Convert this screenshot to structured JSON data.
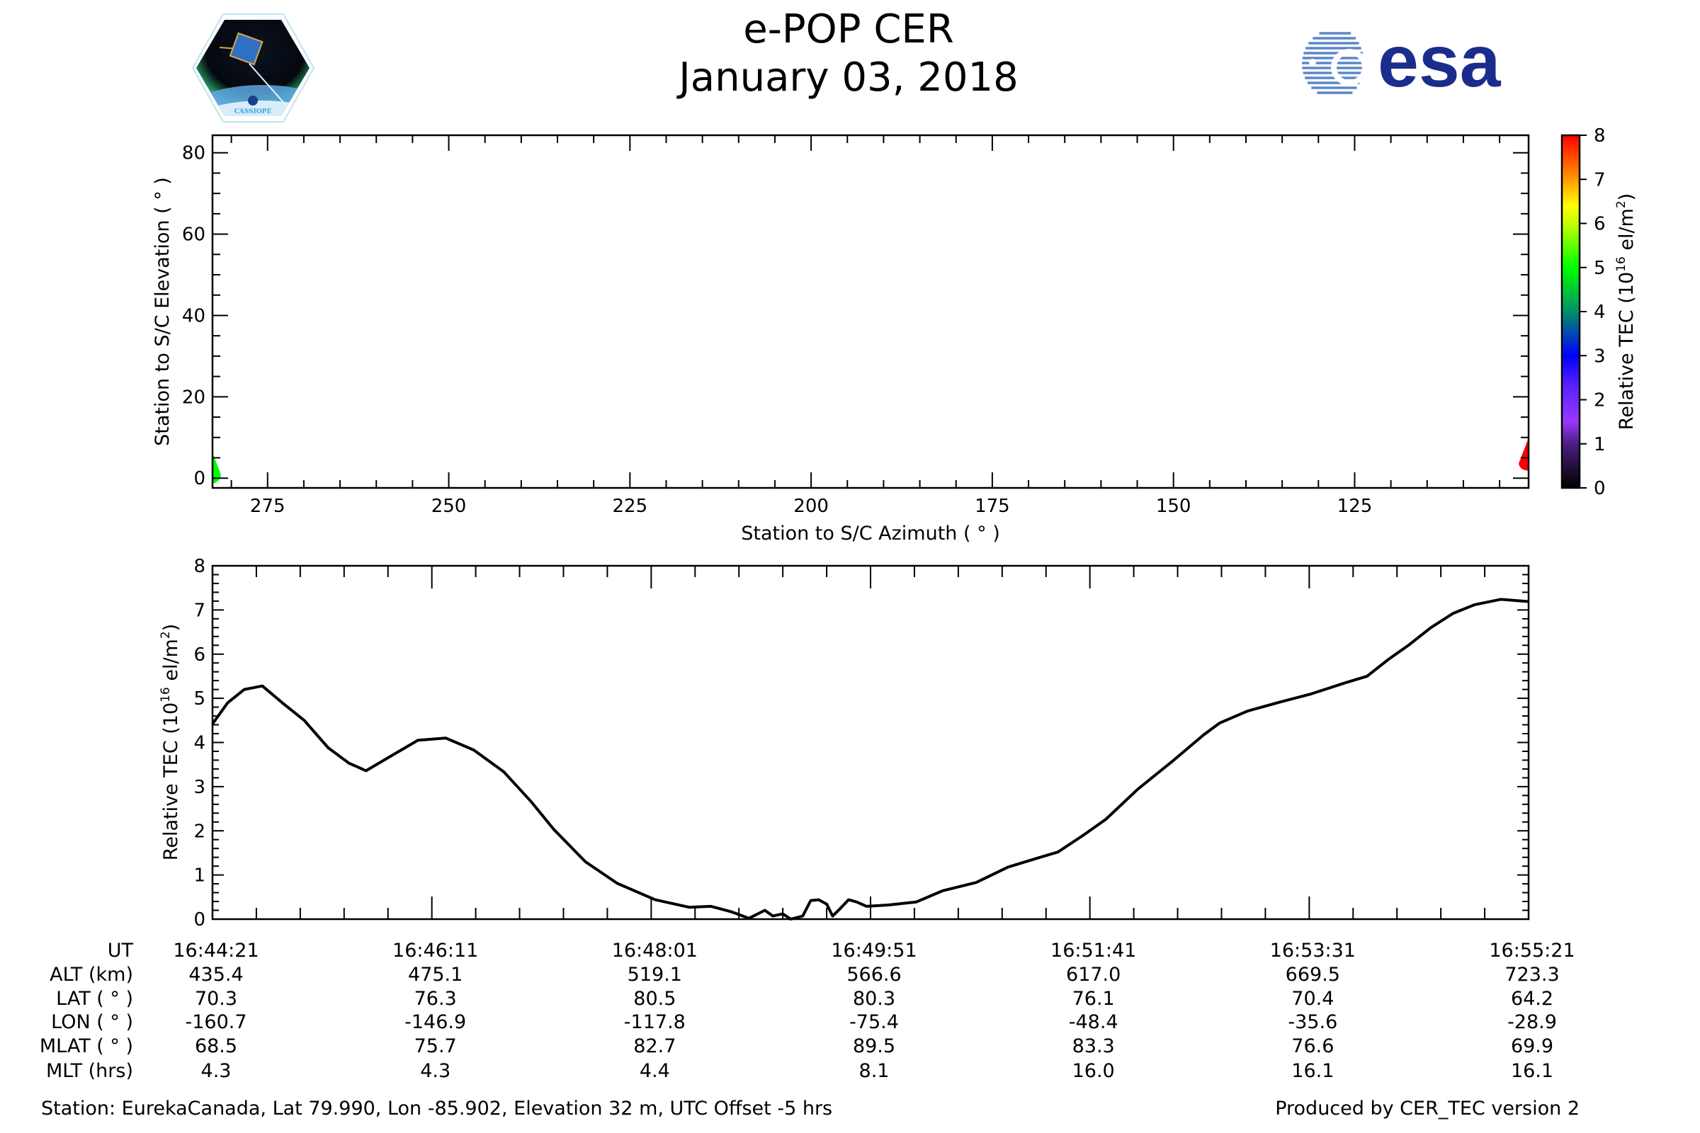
{
  "header": {
    "title": "e-POP CER",
    "date": "January 03, 2018",
    "left_logo_text": "CASSIOPE",
    "right_logo_text": "esa",
    "brand_color": "#1b2d8c"
  },
  "chart_data": [
    {
      "type": "scatter",
      "name": "sky-track",
      "xlabel": "Station to S/C Azimuth ( ° )",
      "ylabel": "Station to S/C Elevation ( ° )",
      "xlim": [
        282.6,
        101
      ],
      "ylim": [
        -2.4,
        84.3
      ],
      "xticks": [
        "275",
        "250",
        "225",
        "200",
        "175",
        "150",
        "125"
      ],
      "xtick_values": [
        275,
        250,
        225,
        200,
        175,
        150,
        125
      ],
      "yticks": [
        "0",
        "20",
        "40",
        "60",
        "80"
      ],
      "ytick_values": [
        0,
        20,
        40,
        60,
        80
      ],
      "points": [
        {
          "az": 282.3,
          "el": 2.5,
          "tec": 5.0
        },
        {
          "az": 101.5,
          "el": 5.0,
          "tec": 7.2
        }
      ],
      "colorbar": {
        "label": "Relative TEC (10",
        "label_sup": "16",
        "label_end": " el/m",
        "label_sup2": "2",
        "label_close": ")",
        "range": [
          0,
          8
        ],
        "ticks": [
          "0",
          "1",
          "2",
          "3",
          "4",
          "5",
          "6",
          "7",
          "8"
        ],
        "colormap": [
          {
            "v": 0,
            "c": "#000000"
          },
          {
            "v": 1,
            "c": "#4a1f80"
          },
          {
            "v": 1.5,
            "c": "#9a38ff"
          },
          {
            "v": 2.3,
            "c": "#5a22ff"
          },
          {
            "v": 3,
            "c": "#0000ff"
          },
          {
            "v": 4,
            "c": "#00906a"
          },
          {
            "v": 5,
            "c": "#00ff00"
          },
          {
            "v": 6,
            "c": "#c4ff00"
          },
          {
            "v": 6.4,
            "c": "#ffff00"
          },
          {
            "v": 7,
            "c": "#ff9900"
          },
          {
            "v": 8,
            "c": "#ff0000"
          }
        ]
      }
    },
    {
      "type": "line",
      "name": "tec-timeseries",
      "ylabel": "Relative TEC (10",
      "ylabel_sup": "16",
      "ylabel_end": " el/m",
      "ylabel_sup2": "2",
      "ylabel_close": ")",
      "xlim_seconds": [
        0,
        660
      ],
      "ylim": [
        0,
        8
      ],
      "yticks": [
        "0",
        "1",
        "2",
        "3",
        "4",
        "5",
        "6",
        "7",
        "8"
      ],
      "x_seconds": [
        0,
        7.6,
        16,
        25,
        35,
        46,
        58,
        68.5,
        77,
        89,
        103,
        117,
        131,
        146,
        160,
        171,
        187,
        203,
        222,
        239,
        250,
        260,
        269,
        277,
        281,
        286,
        290,
        296,
        300,
        304,
        308,
        311,
        315,
        319,
        323,
        328,
        339,
        353,
        366,
        383,
        399,
        415,
        424,
        437,
        448,
        464,
        481,
        497,
        505,
        519,
        535,
        551,
        568,
        579,
        590,
        600,
        611,
        622,
        633,
        646,
        660
      ],
      "values": [
        4.42,
        4.9,
        5.2,
        5.28,
        4.9,
        4.5,
        3.88,
        3.53,
        3.36,
        3.68,
        4.05,
        4.1,
        3.83,
        3.34,
        2.65,
        2.04,
        1.3,
        0.81,
        0.44,
        0.27,
        0.29,
        0.17,
        0.02,
        0.2,
        0.07,
        0.12,
        0.0,
        0.07,
        0.42,
        0.44,
        0.34,
        0.07,
        0.25,
        0.44,
        0.39,
        0.29,
        0.32,
        0.39,
        0.64,
        0.83,
        1.18,
        1.4,
        1.52,
        1.91,
        2.26,
        2.94,
        3.56,
        4.17,
        4.44,
        4.71,
        4.91,
        5.1,
        5.35,
        5.5,
        5.89,
        6.21,
        6.6,
        6.92,
        7.12,
        7.24,
        7.19
      ]
    }
  ],
  "table": {
    "row_labels": [
      "UT",
      "ALT (km)",
      "LAT ( ° )",
      "LON ( ° )",
      "MLAT ( ° )",
      "MLT (hrs)"
    ],
    "columns": [
      [
        "16:44:21",
        "435.4",
        "70.3",
        "-160.7",
        "68.5",
        "4.3"
      ],
      [
        "16:46:11",
        "475.1",
        "76.3",
        "-146.9",
        "75.7",
        "4.3"
      ],
      [
        "16:48:01",
        "519.1",
        "80.5",
        "-117.8",
        "82.7",
        "4.4"
      ],
      [
        "16:49:51",
        "566.6",
        "80.3",
        "-75.4",
        "89.5",
        "8.1"
      ],
      [
        "16:51:41",
        "617.0",
        "76.1",
        "-48.4",
        "83.3",
        "16.0"
      ],
      [
        "16:53:31",
        "669.5",
        "70.4",
        "-35.6",
        "76.6",
        "16.1"
      ],
      [
        "16:55:21",
        "723.3",
        "64.2",
        "-28.9",
        "69.9",
        "16.1"
      ]
    ]
  },
  "footer": {
    "station": "Station: EurekaCanada, Lat 79.990, Lon -85.902, Elevation 32 m, UTC Offset -5 hrs",
    "produced_by": "Produced by CER_TEC version 2"
  }
}
